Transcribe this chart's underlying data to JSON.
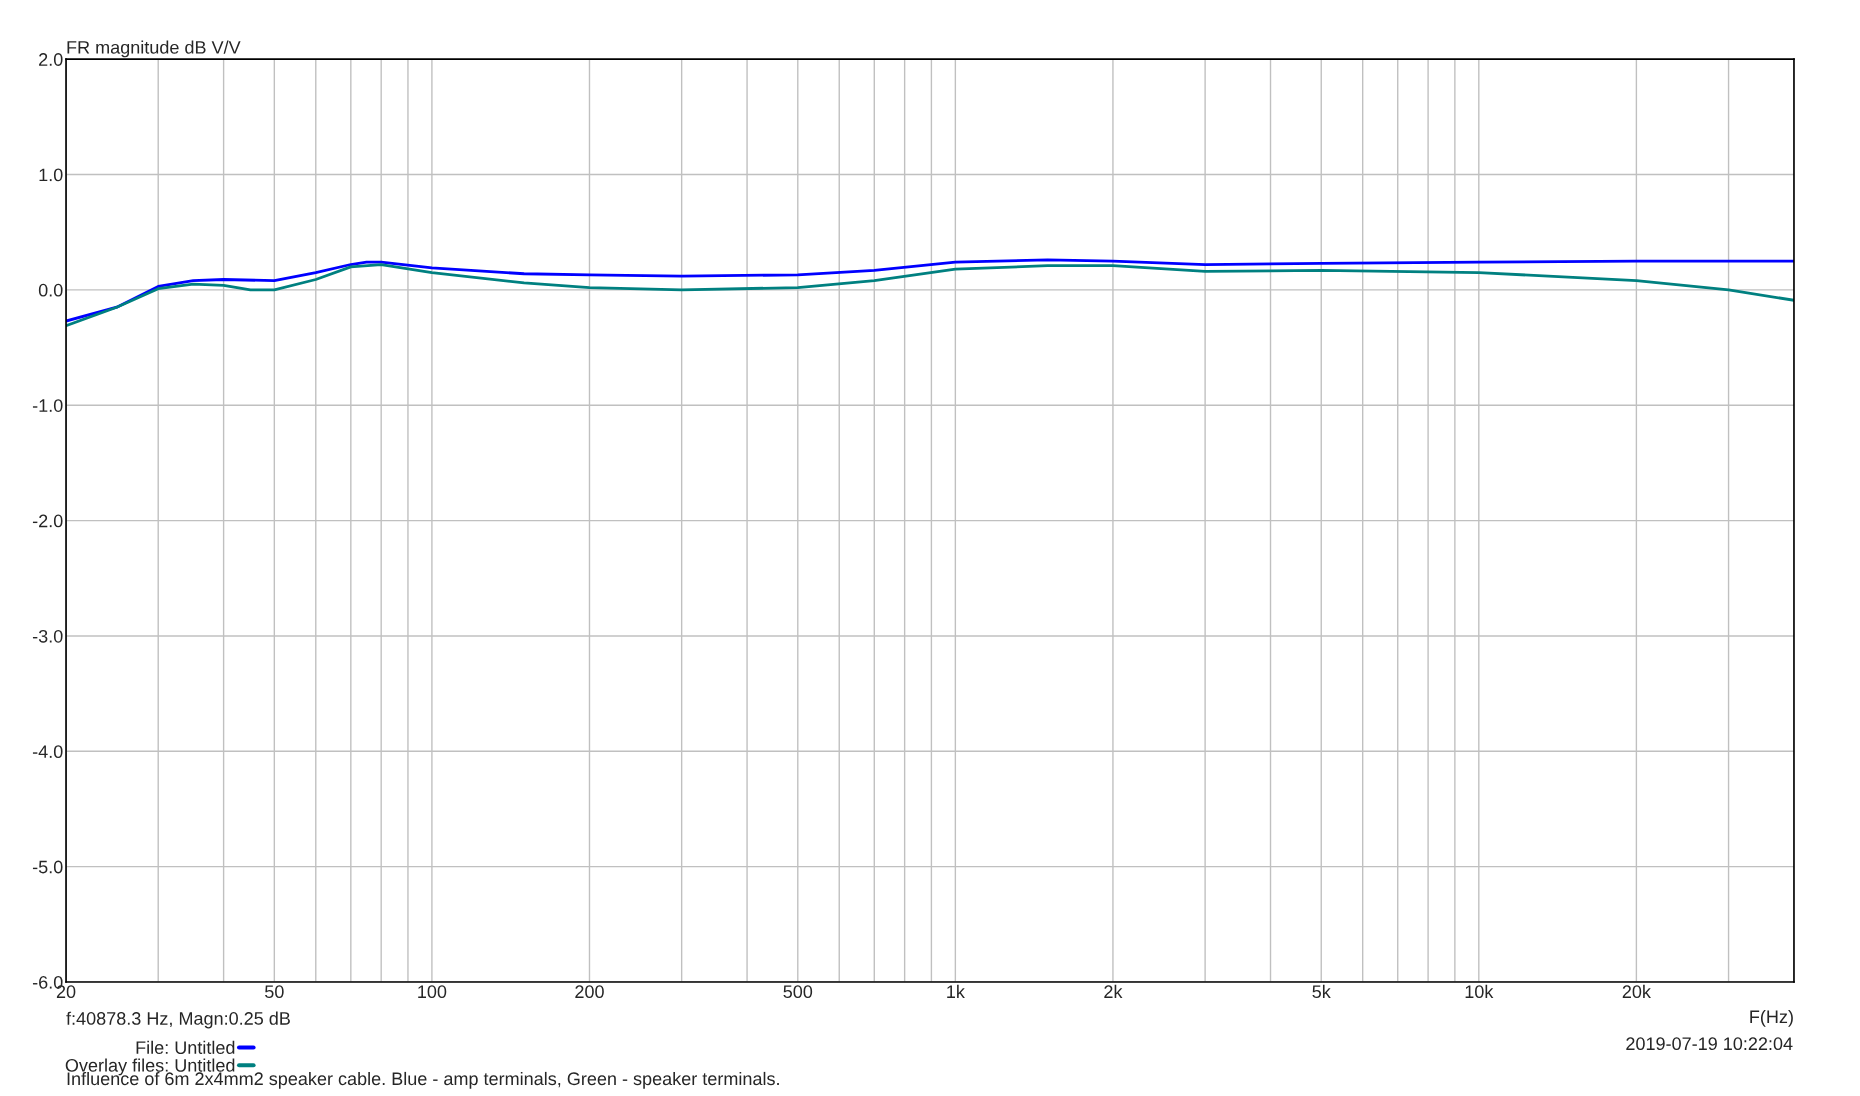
{
  "chart_data": {
    "type": "line",
    "ylabel": "FR magnitude dB V/V",
    "xlabel": "F(Hz)",
    "log": "x",
    "xlim": [
      20,
      40000
    ],
    "ylim": [
      -6.0,
      2.0
    ],
    "xticks": [
      20,
      {
        "value": 30,
        "label": null
      },
      {
        "value": 40,
        "label": null
      },
      50,
      {
        "value": 60,
        "label": null
      },
      {
        "value": 70,
        "label": null
      },
      {
        "value": 80,
        "label": null
      },
      {
        "value": 90,
        "label": null
      },
      100,
      200,
      {
        "value": 300,
        "label": null
      },
      {
        "value": 400,
        "label": null
      },
      500,
      {
        "value": 600,
        "label": null
      },
      {
        "value": 700,
        "label": null
      },
      {
        "value": 800,
        "label": null
      },
      {
        "value": 900,
        "label": null
      },
      {
        "value": 1000,
        "label": "1k"
      },
      {
        "value": 2000,
        "label": "2k"
      },
      {
        "value": 3000,
        "label": null
      },
      {
        "value": 4000,
        "label": null
      },
      {
        "value": 5000,
        "label": "5k"
      },
      {
        "value": 6000,
        "label": null
      },
      {
        "value": 7000,
        "label": null
      },
      {
        "value": 8000,
        "label": null
      },
      {
        "value": 9000,
        "label": null
      },
      {
        "value": 10000,
        "label": "10k"
      },
      {
        "value": 20000,
        "label": "20k"
      },
      {
        "value": 30000,
        "label": null
      }
    ],
    "yticks": [
      {
        "value": 2.0,
        "label": "2.0"
      },
      {
        "value": 1.0,
        "label": "1.0"
      },
      {
        "value": 0.0,
        "label": "0.0"
      },
      {
        "value": -1.0,
        "label": "-1.0"
      },
      {
        "value": -2.0,
        "label": "-2.0"
      },
      {
        "value": -3.0,
        "label": "-3.0"
      },
      {
        "value": -4.0,
        "label": "-4.0"
      },
      {
        "value": -5.0,
        "label": "-5.0"
      },
      {
        "value": -6.0,
        "label": "-6.0"
      }
    ],
    "grid": true,
    "legend": "bottom left",
    "series": [
      {
        "name": "File: Untitled",
        "color": "#0000ff",
        "x": [
          20,
          25,
          30,
          35,
          40,
          50,
          60,
          70,
          75,
          80,
          100,
          150,
          200,
          300,
          500,
          700,
          1000,
          1500,
          2000,
          3000,
          5000,
          10000,
          20000,
          40000
        ],
        "values": [
          -0.27,
          -0.15,
          0.03,
          0.08,
          0.09,
          0.08,
          0.15,
          0.22,
          0.24,
          0.24,
          0.19,
          0.14,
          0.13,
          0.12,
          0.13,
          0.17,
          0.24,
          0.26,
          0.25,
          0.22,
          0.23,
          0.24,
          0.25,
          0.25
        ]
      },
      {
        "name": "Overlay files: Untitled",
        "color": "#008080",
        "x": [
          20,
          25,
          30,
          35,
          40,
          45,
          50,
          60,
          70,
          80,
          100,
          150,
          200,
          300,
          500,
          700,
          1000,
          1500,
          2000,
          3000,
          5000,
          10000,
          20000,
          30000,
          40000
        ],
        "values": [
          -0.31,
          -0.15,
          0.01,
          0.05,
          0.04,
          0.0,
          0.0,
          0.09,
          0.2,
          0.22,
          0.15,
          0.06,
          0.02,
          0.0,
          0.02,
          0.08,
          0.18,
          0.21,
          0.21,
          0.16,
          0.17,
          0.15,
          0.08,
          0.0,
          -0.09
        ]
      }
    ],
    "annotations": [
      "f:40878.3 Hz, Magn:0.25 dB",
      "2019-07-19 10:22:04",
      "Influence of 6m 2x4mm2 speaker cable. Blue - amp terminals, Green - speaker terminals."
    ]
  }
}
